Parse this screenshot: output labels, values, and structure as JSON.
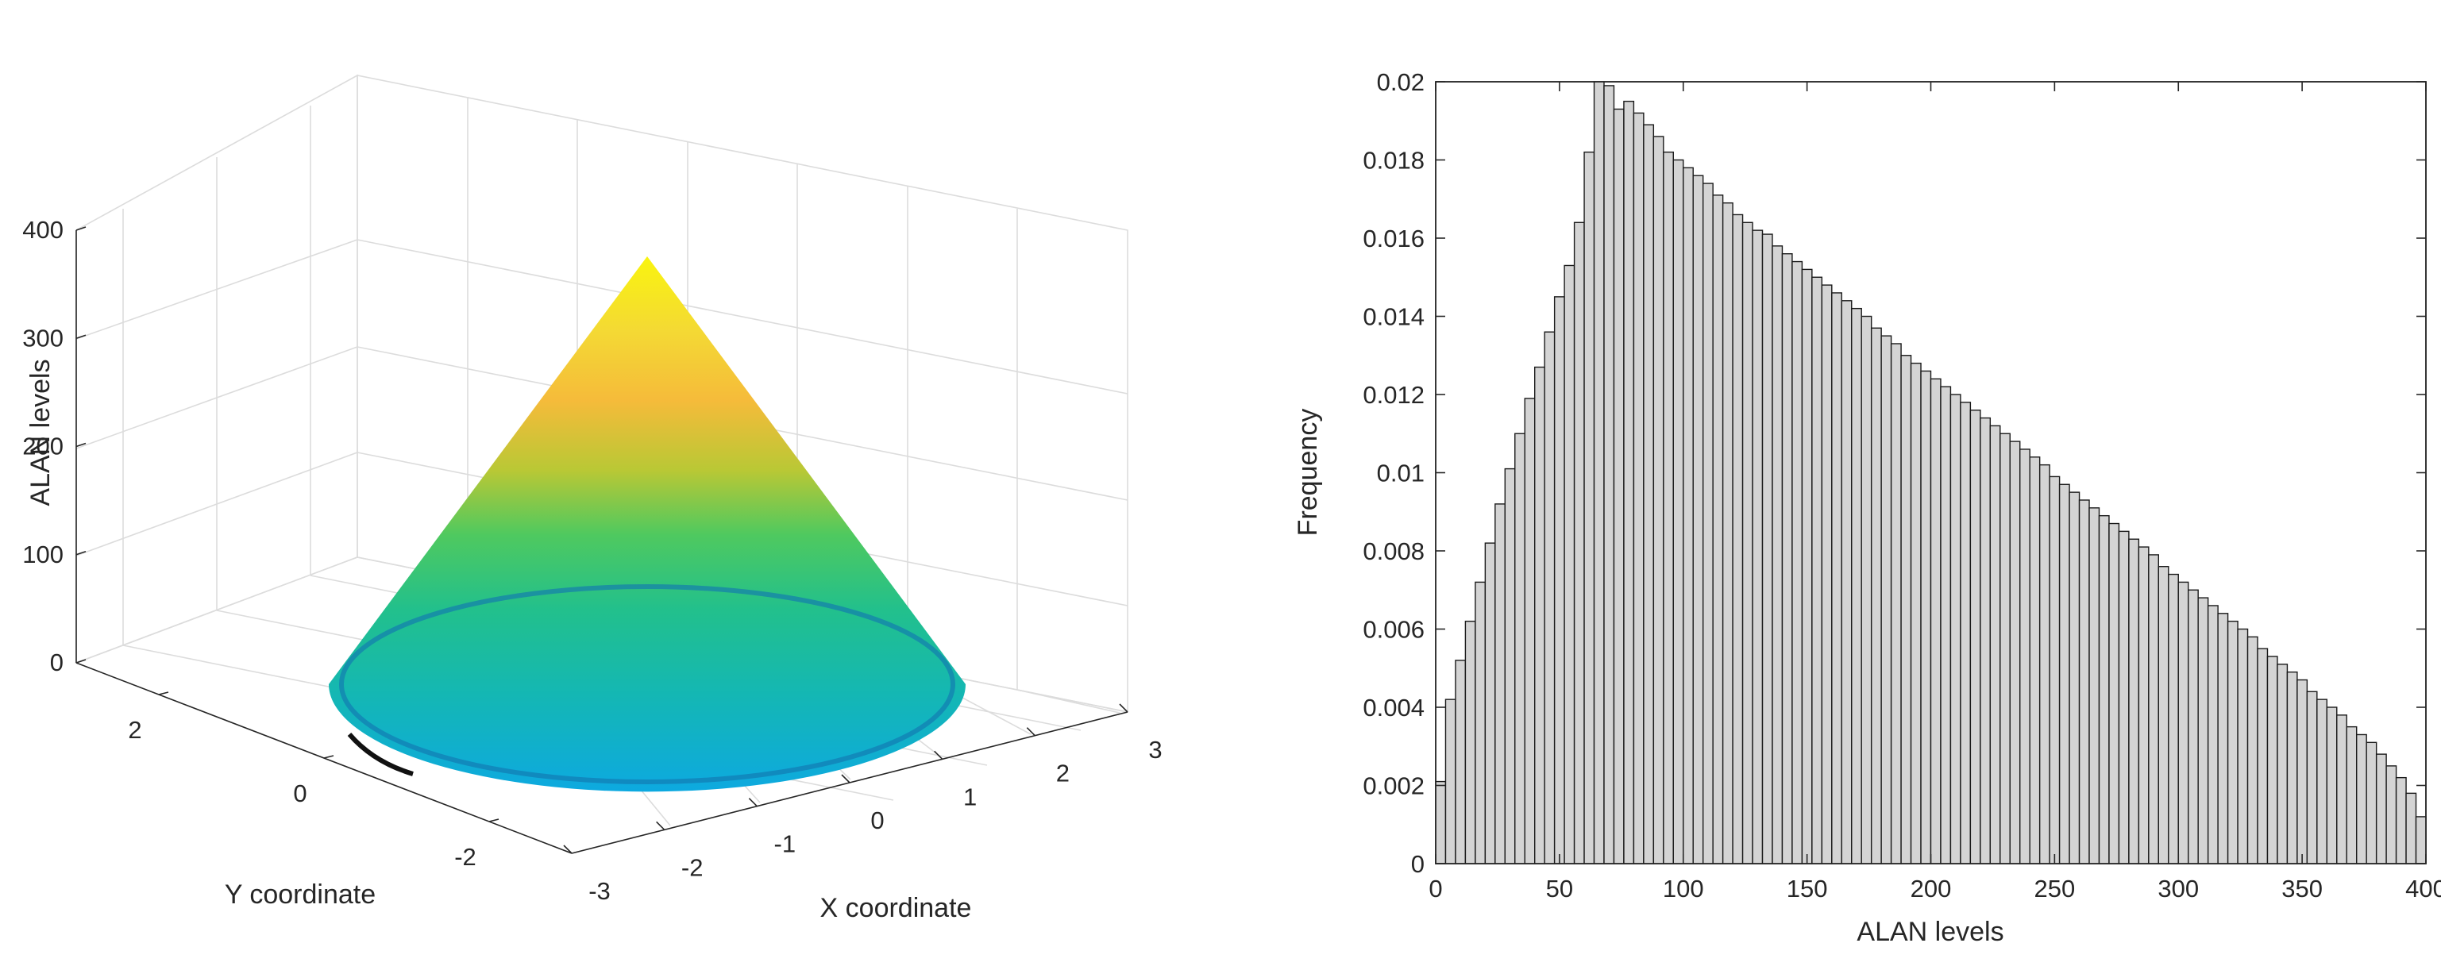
{
  "chart_data": [
    {
      "type": "surface",
      "title": "",
      "xlabel": "X coordinate",
      "ylabel": "Y coordinate",
      "zlabel": "ALAN levels",
      "xlim": [
        -3,
        3
      ],
      "ylim": [
        -3,
        3
      ],
      "zlim": [
        0,
        400
      ],
      "x_ticks": [
        "-3",
        "-2",
        "-1",
        "0",
        "1",
        "2",
        "3"
      ],
      "y_ticks": [
        "-2",
        "0",
        "2"
      ],
      "z_ticks": [
        "0",
        "100",
        "200",
        "300",
        "400"
      ],
      "surface": {
        "shape": "cone",
        "base_radius": 3,
        "apex_height": 380,
        "colormap": "parula"
      },
      "grid": true
    },
    {
      "type": "histogram",
      "title": "",
      "xlabel": "ALAN levels",
      "ylabel": "Frequency",
      "xlim": [
        0,
        400
      ],
      "ylim": [
        0,
        0.02
      ],
      "x_ticks": [
        "0",
        "50",
        "100",
        "150",
        "200",
        "250",
        "300",
        "350",
        "400"
      ],
      "y_ticks": [
        "0",
        "0.002",
        "0.004",
        "0.006",
        "0.008",
        "0.01",
        "0.012",
        "0.014",
        "0.016",
        "0.018",
        "0.02"
      ],
      "bin_width": 4,
      "bin_start": 0,
      "values": [
        0.0021,
        0.0042,
        0.0052,
        0.0062,
        0.0072,
        0.0082,
        0.0092,
        0.0101,
        0.011,
        0.0119,
        0.0127,
        0.0136,
        0.0145,
        0.0153,
        0.0164,
        0.0182,
        0.0205,
        0.0199,
        0.0193,
        0.0195,
        0.0192,
        0.0189,
        0.0186,
        0.0182,
        0.018,
        0.0178,
        0.0176,
        0.0174,
        0.0171,
        0.0169,
        0.0166,
        0.0164,
        0.0162,
        0.0161,
        0.0158,
        0.0156,
        0.0154,
        0.0152,
        0.015,
        0.0148,
        0.0146,
        0.0144,
        0.0142,
        0.014,
        0.0137,
        0.0135,
        0.0133,
        0.013,
        0.0128,
        0.0126,
        0.0124,
        0.0122,
        0.012,
        0.0118,
        0.0116,
        0.0114,
        0.0112,
        0.011,
        0.0108,
        0.0106,
        0.0104,
        0.0102,
        0.0099,
        0.0097,
        0.0095,
        0.0093,
        0.0091,
        0.0089,
        0.0087,
        0.0085,
        0.0083,
        0.0081,
        0.0079,
        0.0076,
        0.0074,
        0.0072,
        0.007,
        0.0068,
        0.0066,
        0.0064,
        0.0062,
        0.006,
        0.0058,
        0.0055,
        0.0053,
        0.0051,
        0.0049,
        0.0047,
        0.0044,
        0.0042,
        0.004,
        0.0038,
        0.0035,
        0.0033,
        0.0031,
        0.0028,
        0.0025,
        0.0022,
        0.0018,
        0.0012
      ],
      "grid": false
    }
  ]
}
